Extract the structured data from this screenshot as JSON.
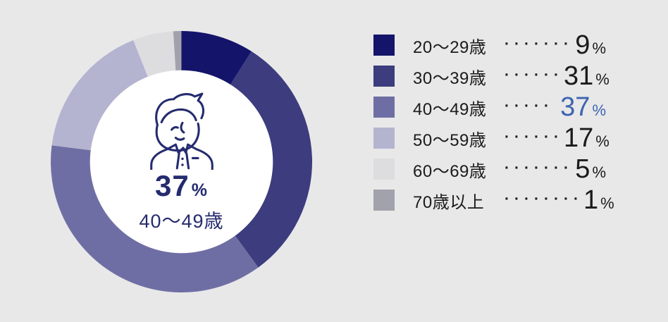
{
  "colors": {
    "background": "#e8e8e9",
    "center_navy": "#252b6e",
    "legend_text": "#1b1b1b",
    "highlight_blue": "#3d64b0"
  },
  "chart_data": {
    "type": "pie",
    "subtype": "donut",
    "categories": [
      "20〜29歳",
      "30〜39歳",
      "40〜49歳",
      "50〜59歳",
      "60〜69歳",
      "70歳以上"
    ],
    "values": [
      9,
      31,
      37,
      17,
      5,
      1
    ],
    "unit": "%",
    "colors": [
      "#14146a",
      "#3c3c7e",
      "#6f6ea4",
      "#b4b4d1",
      "#dddde0",
      "#a2a2ac"
    ],
    "start_angle": "top",
    "direction": "clockwise",
    "inner_radius_ratio": 0.7,
    "legend_position": "right",
    "highlight_category": "40〜49歳",
    "center_text": {
      "value": "37",
      "unit": "%",
      "label": "40〜49歳"
    }
  },
  "center": {
    "value": "37",
    "unit": "%",
    "label": "40〜49歳",
    "icon": "businessman-line-icon"
  },
  "legend": {
    "highlight_color": "#3d64b0",
    "items": [
      {
        "label": "20〜29歳",
        "dots": "·······",
        "value": "9",
        "unit": "%",
        "color": "#14146a",
        "highlight": false
      },
      {
        "label": "30〜39歳",
        "dots": "······",
        "value": "31",
        "unit": "%",
        "color": "#3c3c7e",
        "highlight": false
      },
      {
        "label": "40〜49歳",
        "dots": "·····",
        "value": "37",
        "unit": "%",
        "color": "#6f6ea4",
        "highlight": true
      },
      {
        "label": "50〜59歳",
        "dots": "······",
        "value": "17",
        "unit": "%",
        "color": "#b4b4d1",
        "highlight": false
      },
      {
        "label": "60〜69歳",
        "dots": "·······",
        "value": "5",
        "unit": "%",
        "color": "#dddde0",
        "highlight": false
      },
      {
        "label": "70歳以上",
        "dots": "········",
        "value": "1",
        "unit": "%",
        "color": "#a2a2ac",
        "highlight": false
      }
    ]
  }
}
